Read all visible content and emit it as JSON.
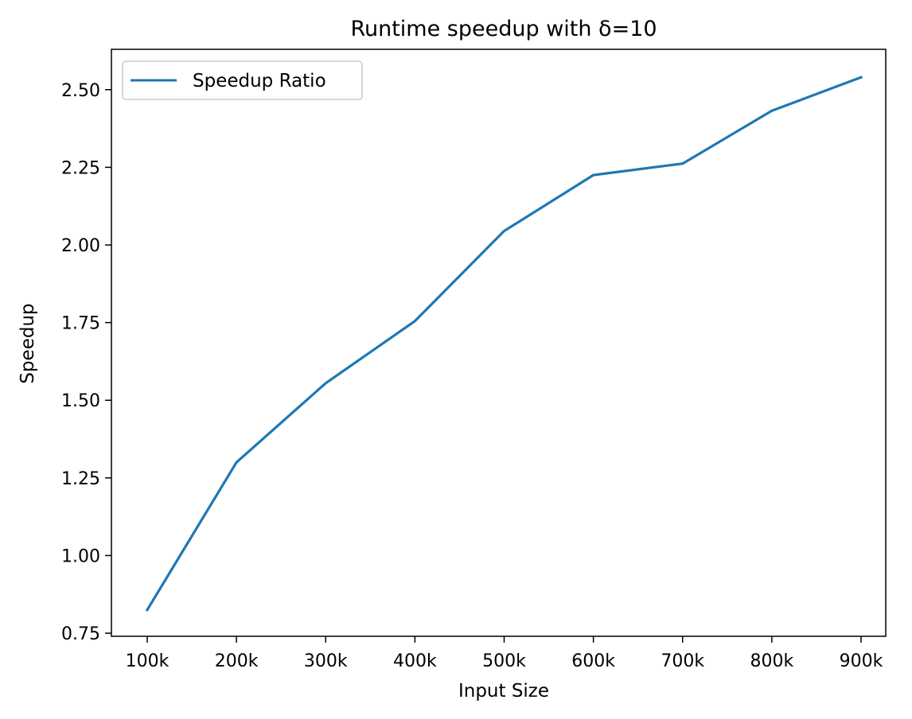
{
  "chart_data": {
    "type": "line",
    "title": "Runtime speedup with δ=10",
    "xlabel": "Input Size",
    "ylabel": "Speedup",
    "categories": [
      "100k",
      "200k",
      "300k",
      "400k",
      "500k",
      "600k",
      "700k",
      "800k",
      "900k"
    ],
    "series": [
      {
        "name": "Speedup Ratio",
        "color": "#1f77b4",
        "values": [
          0.825,
          1.3,
          1.555,
          1.755,
          2.045,
          2.225,
          2.262,
          2.432,
          2.54
        ]
      }
    ],
    "y_ticks": [
      0.75,
      1.0,
      1.25,
      1.5,
      1.75,
      2.0,
      2.25,
      2.5
    ],
    "y_tick_labels": [
      "0.75",
      "1.00",
      "1.25",
      "1.50",
      "1.75",
      "2.00",
      "2.25",
      "2.50"
    ],
    "ylim": [
      0.74,
      2.63
    ],
    "grid": false,
    "legend_position": "top-left"
  }
}
